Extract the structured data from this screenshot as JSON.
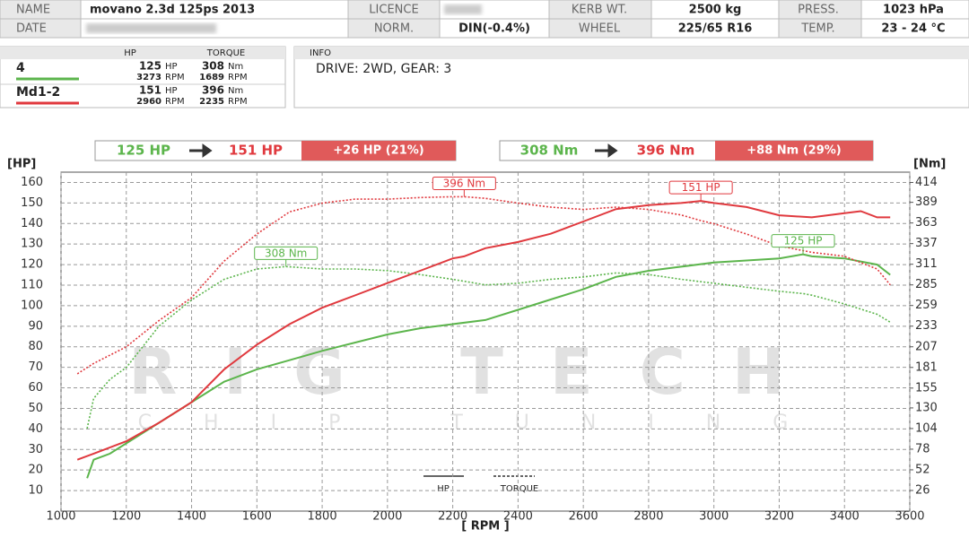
{
  "header": {
    "name_label": "NAME",
    "name": "movano 2.3d 125ps 2013",
    "date_label": "DATE",
    "licence_label": "LICENCE",
    "norm_label": "NORM.",
    "norm": "DIN(-0.4%)",
    "kerb_label": "KERB WT.",
    "kerb": "2500 kg",
    "wheel_label": "WHEEL",
    "wheel": "225/65 R16",
    "press_label": "PRESS.",
    "press": "1023 hPa",
    "temp_label": "TEMP.",
    "temp": "23 - 24 °C"
  },
  "legend_columns": [
    "HP",
    "TORQUE"
  ],
  "units": {
    "hp": "HP",
    "nm": "Nm",
    "rpm": "RPM"
  },
  "info_label": "INFO",
  "info": "DRIVE: 2WD,  GEAR: 3",
  "comparison": {
    "hp": {
      "from": "125 HP",
      "to": "151 HP",
      "diff": "+26 HP  (21%)"
    },
    "torque": {
      "from": "308 Nm",
      "to": "396 Nm",
      "diff": "+88 Nm  (29%)"
    }
  },
  "watermark": {
    "big": "RIG TECH",
    "small": "CHIP TUNING"
  },
  "chart_data": {
    "type": "line",
    "xlabel": "[ RPM ]",
    "ylabel": "[HP]",
    "y2label": "[Nm]",
    "grid": true,
    "xlim": [
      1000,
      3600
    ],
    "xticks": [
      1000,
      1200,
      1400,
      1600,
      1800,
      2000,
      2200,
      2400,
      2600,
      2800,
      3000,
      3200,
      3400,
      3600
    ],
    "ylim": [
      0,
      165
    ],
    "yticks": [
      10,
      20,
      30,
      40,
      50,
      60,
      70,
      80,
      90,
      100,
      110,
      120,
      130,
      140,
      150,
      160
    ],
    "y2lim": [
      0,
      427
    ],
    "y2ticks": [
      26,
      52,
      78,
      104,
      130,
      155,
      181,
      207,
      233,
      259,
      285,
      311,
      337,
      363,
      389,
      414
    ],
    "line_legend": [
      "HP",
      "TORQUE"
    ],
    "series": [
      {
        "name": "4",
        "color": "#5cb54c",
        "peak_hp": 125,
        "peak_hp_rpm": 3273,
        "peak_torque": 308,
        "peak_torque_rpm": 1689,
        "x": [
          1080,
          1100,
          1150,
          1200,
          1300,
          1400,
          1500,
          1600,
          1689,
          1800,
          1900,
          2000,
          2100,
          2200,
          2300,
          2400,
          2500,
          2600,
          2700,
          2800,
          2900,
          3000,
          3100,
          3200,
          3273,
          3300,
          3400,
          3500,
          3540
        ],
        "values": [
          16,
          25,
          28,
          33,
          43,
          53,
          63,
          69,
          73,
          78,
          82,
          86,
          89,
          91,
          93,
          98,
          103,
          108,
          114,
          117,
          119,
          121,
          122,
          123,
          125,
          124,
          123,
          120,
          115
        ],
        "torque_values": [
          104,
          142,
          166,
          181,
          233,
          266,
          292,
          305,
          308,
          305,
          305,
          303,
          298,
          292,
          285,
          287,
          292,
          295,
          300,
          298,
          292,
          287,
          282,
          277,
          274,
          272,
          261,
          248,
          238
        ]
      },
      {
        "name": "Md1-2",
        "color": "#e0393e",
        "peak_hp": 151,
        "peak_hp_rpm": 2960,
        "peak_torque": 396,
        "peak_torque_rpm": 2235,
        "x": [
          1050,
          1100,
          1200,
          1300,
          1400,
          1500,
          1600,
          1700,
          1800,
          1900,
          2000,
          2100,
          2200,
          2235,
          2300,
          2400,
          2500,
          2600,
          2700,
          2800,
          2900,
          2960,
          3000,
          3100,
          3200,
          3300,
          3400,
          3450,
          3500,
          3540
        ],
        "values": [
          25,
          28,
          34,
          43,
          53,
          69,
          81,
          91,
          99,
          105,
          111,
          117,
          123,
          124,
          128,
          131,
          135,
          141,
          147,
          149,
          150,
          151,
          150,
          148,
          144,
          143,
          145,
          146,
          143,
          143
        ],
        "torque_values": [
          173,
          186,
          207,
          240,
          269,
          315,
          349,
          377,
          388,
          393,
          393,
          395,
          396,
          396,
          394,
          388,
          383,
          380,
          383,
          380,
          373,
          366,
          362,
          349,
          334,
          326,
          321,
          313,
          305,
          285
        ]
      }
    ],
    "annotations": [
      {
        "text": "308 Nm",
        "x": 1689,
        "y": 308,
        "axis": "y2",
        "series": 0
      },
      {
        "text": "396 Nm",
        "x": 2235,
        "y": 396,
        "axis": "y2",
        "series": 1
      },
      {
        "text": "151 HP",
        "x": 2960,
        "y": 151,
        "axis": "y",
        "series": 1
      },
      {
        "text": "125 HP",
        "x": 3273,
        "y": 125,
        "axis": "y",
        "series": 0
      }
    ]
  }
}
